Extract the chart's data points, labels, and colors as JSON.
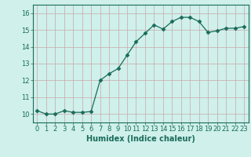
{
  "x": [
    0,
    1,
    2,
    3,
    4,
    5,
    6,
    7,
    8,
    9,
    10,
    11,
    12,
    13,
    14,
    15,
    16,
    17,
    18,
    19,
    20,
    21,
    22,
    23
  ],
  "y": [
    10.2,
    10.0,
    10.0,
    10.2,
    10.1,
    10.1,
    10.15,
    12.0,
    12.4,
    12.7,
    13.5,
    14.3,
    14.8,
    15.3,
    15.05,
    15.5,
    15.75,
    15.75,
    15.5,
    14.85,
    14.95,
    15.1,
    15.1,
    15.2
  ],
  "xlabel": "Humidex (Indice chaleur)",
  "ylim": [
    9.5,
    16.5
  ],
  "xlim": [
    -0.5,
    23.5
  ],
  "yticks": [
    10,
    11,
    12,
    13,
    14,
    15,
    16
  ],
  "xticks": [
    0,
    1,
    2,
    3,
    4,
    5,
    6,
    7,
    8,
    9,
    10,
    11,
    12,
    13,
    14,
    15,
    16,
    17,
    18,
    19,
    20,
    21,
    22,
    23
  ],
  "xtick_labels": [
    "0",
    "1",
    "2",
    "3",
    "4",
    "5",
    "6",
    "7",
    "8",
    "9",
    "10",
    "11",
    "12",
    "13",
    "14",
    "15",
    "16",
    "17",
    "18",
    "19",
    "20",
    "21",
    "22",
    "23"
  ],
  "line_color": "#1a6b5a",
  "marker": "D",
  "marker_size": 2.5,
  "bg_color": "#cff0eb",
  "grid_color": "#c8a8a8",
  "tick_color": "#1a6b5a",
  "label_color": "#1a6b5a",
  "tick_fontsize": 6,
  "xlabel_fontsize": 7
}
